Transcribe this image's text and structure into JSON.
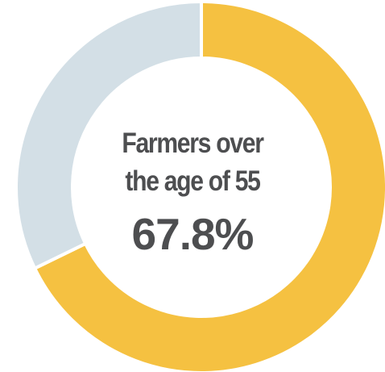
{
  "chart_data": {
    "type": "pie",
    "variant": "donut",
    "title_lines": [
      "Farmers over",
      "the age of 55"
    ],
    "center_value": "67.8%",
    "slices": [
      {
        "value": 67.8,
        "color": "#f5c141"
      },
      {
        "value": 32.2,
        "color": "#d3dfe6"
      }
    ],
    "separator_color": "#ffffff"
  }
}
